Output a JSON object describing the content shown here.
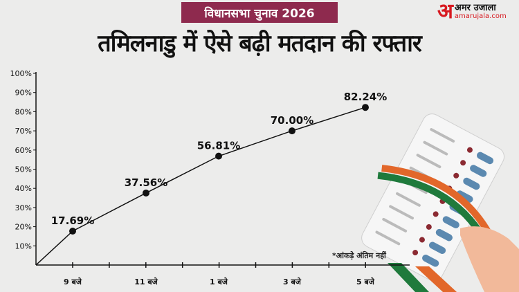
{
  "header": {
    "badge": "विधानसभा चुनाव 2026",
    "title": "तमिलनाडु में ऐसे बढ़ी मतदान की रफ्तार"
  },
  "logo": {
    "mark": "अ",
    "name": "अमर उजाला",
    "site": "amarujala.com",
    "color": "#d71920"
  },
  "footnote": "*आंकड़े अंतिम नहीं",
  "chart_data": {
    "type": "line",
    "title": "तमिलनाडु में ऐसे बढ़ी मतदान की रफ्तार",
    "categories": [
      "9 बजे",
      "11 बजे",
      "1 बजे",
      "3 बजे",
      "5 बजे"
    ],
    "values": [
      17.69,
      37.56,
      56.81,
      70.0,
      82.24
    ],
    "data_labels": [
      "17.69%",
      "37.56%",
      "56.81%",
      "70.00%",
      "82.24%"
    ],
    "yticks": [
      "10%",
      "20%",
      "30%",
      "40%",
      "50%",
      "60%",
      "70%",
      "80%",
      "90%",
      "100%"
    ],
    "ylim": [
      0,
      100
    ],
    "grid": false,
    "line_color": "#111111",
    "badge_color": "#8e2a4e"
  }
}
